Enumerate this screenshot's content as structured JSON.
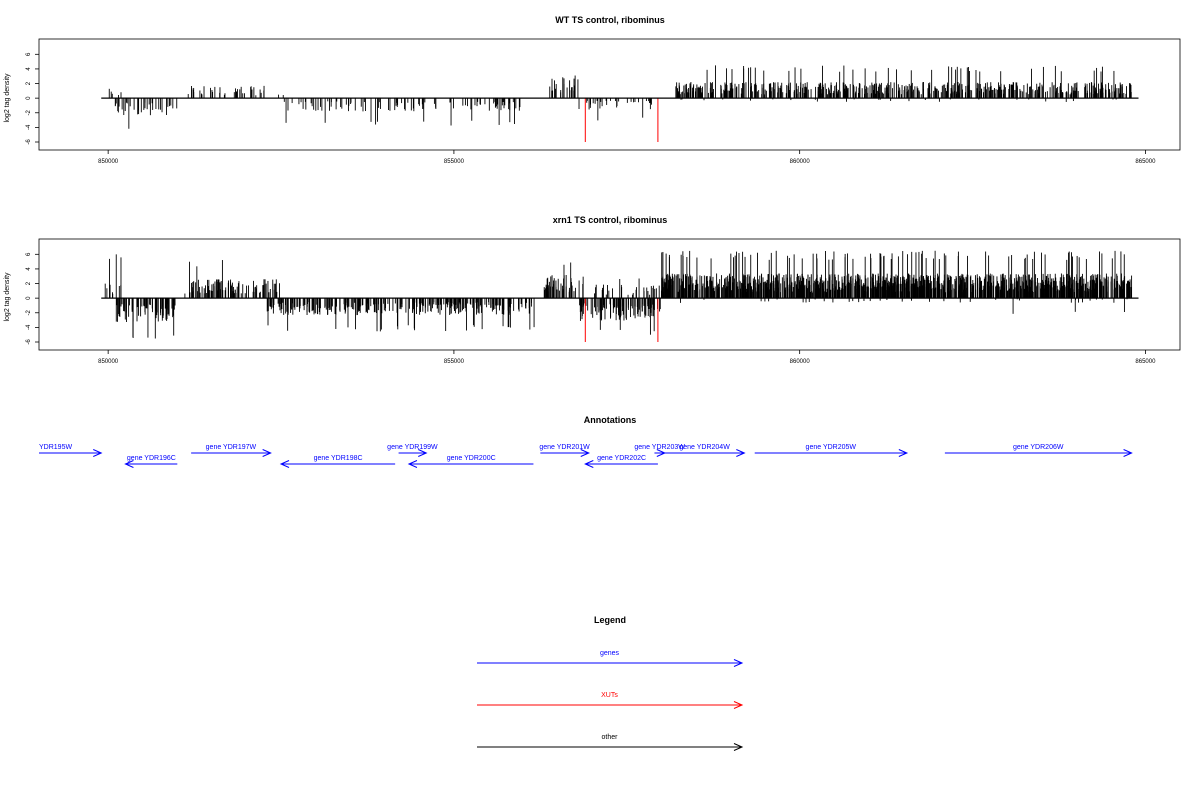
{
  "chart_data": [
    {
      "type": "bar",
      "title": "WT TS control, ribominus",
      "ylabel": "log2 tag density",
      "xlim": [
        849000,
        865500
      ],
      "ylim": [
        -6,
        7
      ],
      "x_ticks": [
        850000,
        855000,
        860000,
        865000
      ],
      "x_tick_labels": [
        "850000",
        "855000",
        "860000",
        "865000"
      ],
      "y_ticks": [
        -6,
        -4,
        -2,
        0,
        2,
        4,
        6
      ],
      "y_tick_labels": [
        "-6",
        "-4",
        "-2",
        "0",
        "2",
        "4",
        "6"
      ],
      "baseline": {
        "x_start": 849900,
        "x_end": 864900
      },
      "series": [
        {
          "strand": "plus",
          "color": "#000000",
          "segments": [
            {
              "x": [
                849950,
                850200
              ],
              "typ": 1.0,
              "max": 4.9,
              "density": 0.02
            },
            {
              "x": [
                851100,
                852300
              ],
              "typ": 1.3,
              "max": 3.2,
              "density": 0.03
            },
            {
              "x": [
                852400,
                852600
              ],
              "typ": 0.7,
              "max": 1.0,
              "density": 0.01
            },
            {
              "x": [
                856300,
                856800
              ],
              "typ": 2.2,
              "max": 3.3,
              "density": 0.05
            },
            {
              "x": [
                858200,
                864800
              ],
              "typ": 1.7,
              "max": 4.5,
              "density": 0.09
            }
          ]
        },
        {
          "strand": "minus",
          "color": "#000000",
          "segments": [
            {
              "x": [
                850100,
                851000
              ],
              "typ": -1.8,
              "min": -4.3,
              "density": 0.04
            },
            {
              "x": [
                852500,
                856000
              ],
              "typ": -1.4,
              "min": -3.8,
              "density": 0.03
            },
            {
              "x": [
                856800,
                857900
              ],
              "typ": -1.2,
              "min": -3.1,
              "density": 0.03
            },
            {
              "x": [
                858200,
                864800
              ],
              "typ": -0.4,
              "min": -1.5,
              "density": 0.004
            }
          ]
        }
      ],
      "highlights": [
        {
          "x": 856900,
          "y": -6,
          "color": "#ff0000"
        },
        {
          "x": 857950,
          "y": -6,
          "color": "#ff0000"
        }
      ]
    },
    {
      "type": "bar",
      "title": "xrn1 TS control, ribominus",
      "ylabel": "log2 tag density",
      "xlim": [
        849000,
        865500
      ],
      "ylim": [
        -6,
        7
      ],
      "x_ticks": [
        850000,
        855000,
        860000,
        865000
      ],
      "x_tick_labels": [
        "850000",
        "855000",
        "860000",
        "865000"
      ],
      "y_ticks": [
        -6,
        -4,
        -2,
        0,
        2,
        4,
        6
      ],
      "y_tick_labels": [
        "-6",
        "-4",
        "-2",
        "0",
        "2",
        "4",
        "6"
      ],
      "baseline": {
        "x_start": 849900,
        "x_end": 864900
      },
      "series": [
        {
          "strand": "plus",
          "color": "#000000",
          "segments": [
            {
              "x": [
                849950,
                850200
              ],
              "typ": 1.8,
              "max": 6.1,
              "density": 0.04
            },
            {
              "x": [
                851100,
                852500
              ],
              "typ": 2.0,
              "max": 5.3,
              "density": 0.07
            },
            {
              "x": [
                856300,
                856900
              ],
              "typ": 2.6,
              "max": 5.3,
              "density": 0.08
            },
            {
              "x": [
                857000,
                858000
              ],
              "typ": 1.5,
              "max": 3.0,
              "density": 0.03
            },
            {
              "x": [
                858000,
                864800
              ],
              "typ": 2.6,
              "max": 6.5,
              "density": 0.18
            }
          ]
        },
        {
          "strand": "minus",
          "color": "#000000",
          "segments": [
            {
              "x": [
                850100,
                851000
              ],
              "typ": -2.6,
              "min": -5.9,
              "density": 0.08
            },
            {
              "x": [
                852300,
                856200
              ],
              "typ": -1.8,
              "min": -4.6,
              "density": 0.08
            },
            {
              "x": [
                856800,
                858000
              ],
              "typ": -2.4,
              "min": -5.4,
              "density": 0.09
            },
            {
              "x": [
                858200,
                864800
              ],
              "typ": -0.5,
              "min": -2.3,
              "density": 0.006
            }
          ]
        }
      ],
      "highlights": [
        {
          "x": 856900,
          "y": -6,
          "color": "#ff0000"
        },
        {
          "x": 857950,
          "y": -6,
          "color": "#ff0000"
        }
      ]
    }
  ],
  "annotations": {
    "title": "Annotations",
    "color": "#0000ff",
    "genes": [
      {
        "label": "YDR195W",
        "prefix_hidden": true,
        "start": 849000,
        "end": 849900,
        "strand": "+",
        "row": 0
      },
      {
        "label": "gene YDR196C",
        "start": 850250,
        "end": 851000,
        "strand": "-",
        "row": 1
      },
      {
        "label": "gene YDR197W",
        "start": 851200,
        "end": 852350,
        "strand": "+",
        "row": 0
      },
      {
        "label": "gene YDR198C",
        "start": 852500,
        "end": 854150,
        "strand": "-",
        "row": 1
      },
      {
        "label": "gene YDR199W",
        "start": 854200,
        "end": 854600,
        "strand": "+",
        "row": 0
      },
      {
        "label": "gene YDR200C",
        "start": 854350,
        "end": 856150,
        "strand": "-",
        "row": 1
      },
      {
        "label": "gene YDR201W",
        "start": 856250,
        "end": 856950,
        "strand": "+",
        "row": 0
      },
      {
        "label": "gene YDR202C",
        "start": 856900,
        "end": 857950,
        "strand": "-",
        "row": 1
      },
      {
        "label": "gene YDR203W",
        "start": 857900,
        "end": 858050,
        "strand": "+",
        "row": 0
      },
      {
        "label": "gene YDR204W",
        "start": 858050,
        "end": 859200,
        "strand": "+",
        "row": 0
      },
      {
        "label": "gene YDR205W",
        "start": 859350,
        "end": 861550,
        "strand": "+",
        "row": 0
      },
      {
        "label": "gene YDR206W",
        "start": 862100,
        "end": 864800,
        "strand": "+",
        "row": 0
      }
    ]
  },
  "legend": {
    "title": "Legend",
    "items": [
      {
        "label": "genes",
        "color": "#0000ff"
      },
      {
        "label": "XUTs",
        "color": "#ff0000"
      },
      {
        "label": "other",
        "color": "#000000"
      }
    ]
  }
}
